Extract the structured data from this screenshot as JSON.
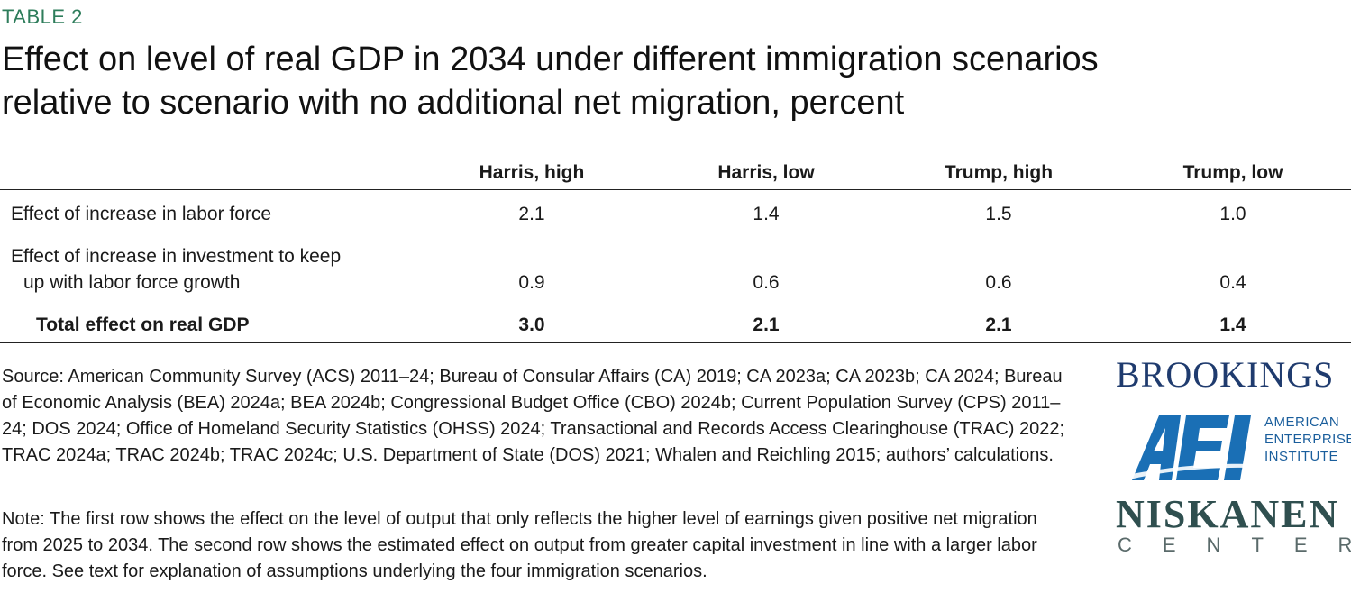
{
  "table_label": "TABLE 2",
  "title_line1": "Effect on level of real GDP in 2034 under different immigration scenarios",
  "title_line2": "relative to scenario with no additional net migration, percent",
  "columns": [
    "Harris, high",
    "Harris, low",
    "Trump, high",
    "Trump, low"
  ],
  "rows": [
    {
      "label_line1": "Effect of increase in labor force",
      "label_line2": "",
      "values": [
        "2.1",
        "1.4",
        "1.5",
        "1.0"
      ]
    },
    {
      "label_line1": "Effect of increase in investment to keep",
      "label_line2": "up with labor force growth",
      "values": [
        "0.9",
        "0.6",
        "0.6",
        "0.4"
      ]
    },
    {
      "label_line1": "Total effect on real GDP",
      "label_line2": "",
      "values": [
        "3.0",
        "2.1",
        "2.1",
        "1.4"
      ]
    }
  ],
  "source": "Source: American Community Survey (ACS) 2011–24; Bureau of Consular Affairs (CA) 2019; CA 2023a; CA 2023b; CA 2024; Bureau of Economic Analysis (BEA) 2024a; BEA 2024b; Congressional Budget Office (CBO) 2024b; Current Population Survey (CPS) 2011–24; DOS 2024; Office of Homeland Security Statistics (OHSS) 2024; Transactional and Records Access Clearinghouse (TRAC) 2022; TRAC 2024a; TRAC 2024b; TRAC 2024c; U.S. Department of State (DOS) 2021; Whalen and Reichling 2015; authors’ calculations.",
  "note": "Note: The first row shows the effect on the level of output that only reflects the higher level of earnings given positive net migration from 2025 to 2034. The second row shows the estimated effect on output from greater capital investment in line with a larger labor force. See text for explanation of assumptions underlying the four immigration scenarios.",
  "logos": {
    "brookings": "BROOKINGS",
    "aei_mark": "AEI",
    "aei_line1": "AMERICAN",
    "aei_line2": "ENTERPRISE",
    "aei_line3": "INSTITUTE",
    "niskanen": "NISKANEN",
    "center": "CENTER"
  },
  "colors": {
    "label_green": "#2e7d5b",
    "brookings_blue": "#1f3b6e",
    "aei_blue": "#1a6fb5",
    "niskanen_slate": "#2f4f4f"
  }
}
